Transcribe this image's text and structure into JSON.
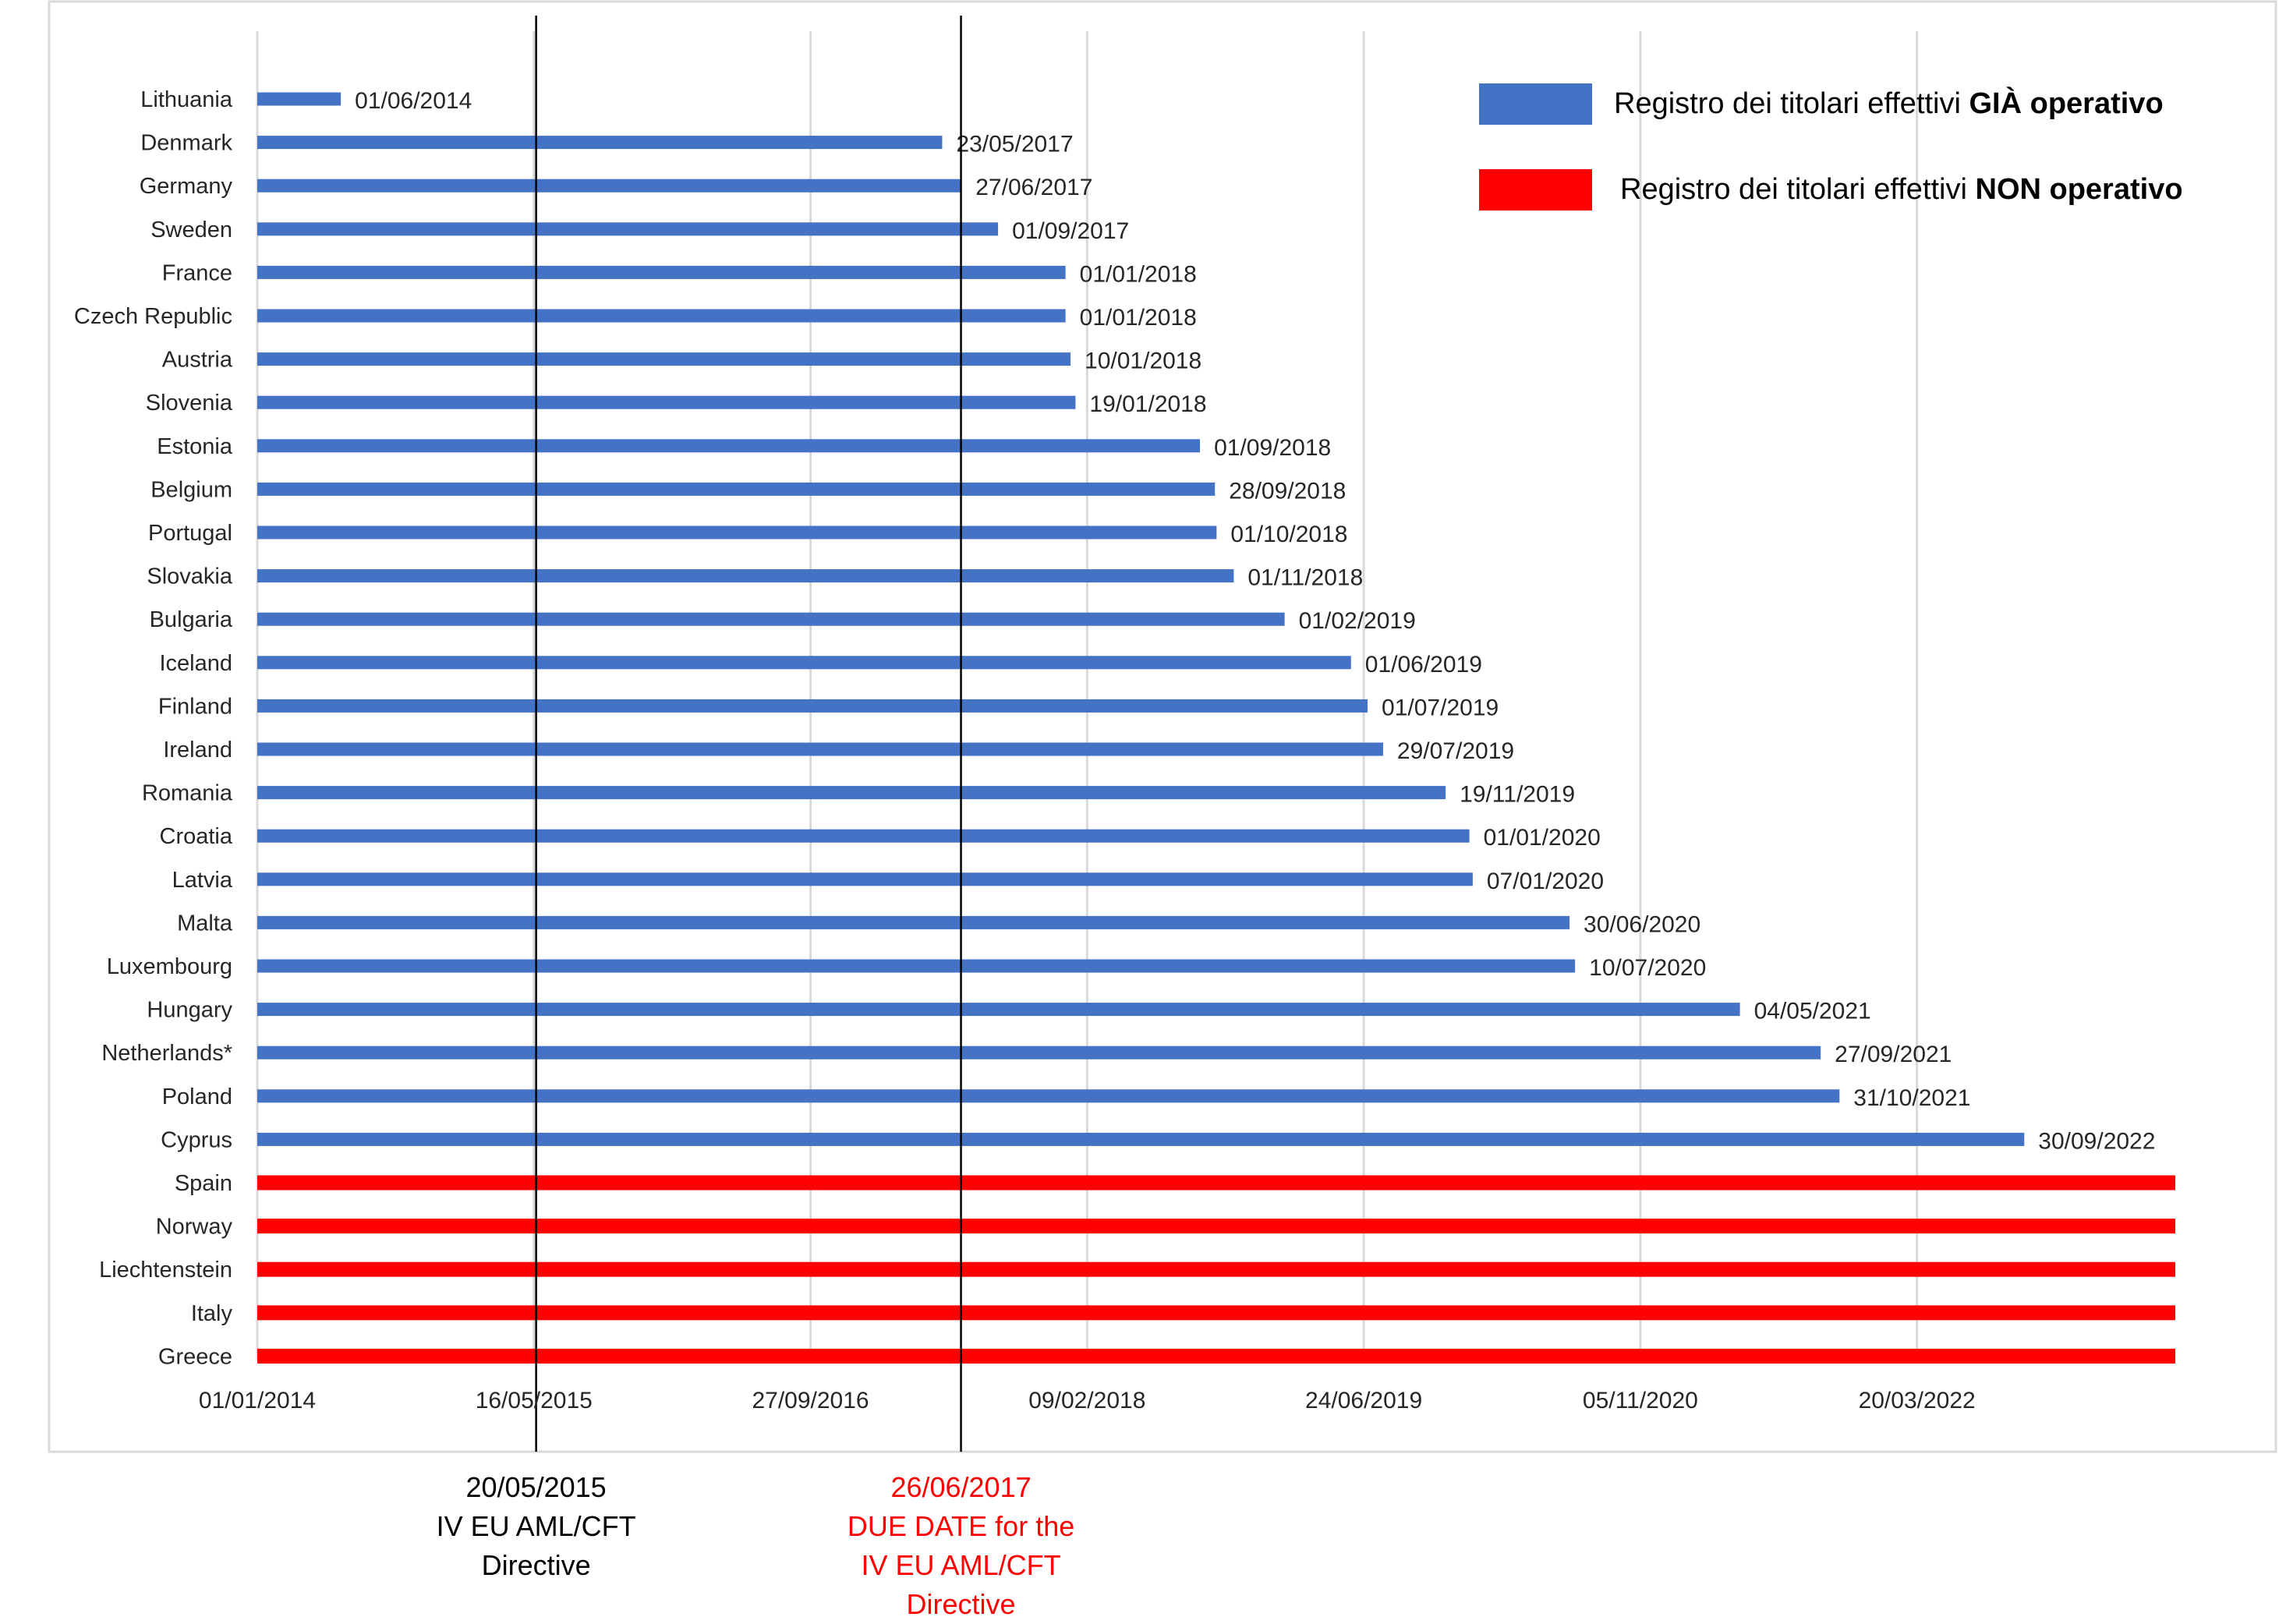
{
  "chart_data": {
    "type": "bar",
    "orientation": "horizontal",
    "colors": {
      "operational": "#4472C4",
      "not_operational": "#FF0000",
      "annotation_red": "#FF0000",
      "annotation_black": "#000000"
    },
    "x_axis": {
      "type": "date",
      "range": [
        "2014-01-01",
        "2023-06-30"
      ],
      "ticks": [
        {
          "date": "2014-01-01",
          "label": "01/01/2014"
        },
        {
          "date": "2015-05-16",
          "label": "16/05/2015"
        },
        {
          "date": "2016-09-27",
          "label": "27/09/2016"
        },
        {
          "date": "2018-02-09",
          "label": "09/02/2018"
        },
        {
          "date": "2019-06-24",
          "label": "24/06/2019"
        },
        {
          "date": "2020-11-05",
          "label": "05/11/2020"
        },
        {
          "date": "2022-03-20",
          "label": "20/03/2022"
        }
      ],
      "grid": true
    },
    "categories": [
      "Lithuania",
      "Denmark",
      "Germany",
      "Sweden",
      "France",
      "Czech Republic",
      "Austria",
      "Slovenia",
      "Estonia",
      "Belgium",
      "Portugal",
      "Slovakia",
      "Bulgaria",
      "Iceland",
      "Finland",
      "Ireland",
      "Romania",
      "Croatia",
      "Latvia",
      "Malta",
      "Luxembourg",
      "Hungary",
      "Netherlands*",
      "Poland",
      "Cyprus",
      "Spain",
      "Norway",
      "Liechtenstein",
      "Italy",
      "Greece"
    ],
    "series": [
      {
        "name": "Registro dei titolari effettivi GIÀ operativo",
        "status": "operational",
        "items": [
          {
            "country": "Lithuania",
            "end": "2014-06-01",
            "label": "01/06/2014"
          },
          {
            "country": "Denmark",
            "end": "2017-05-23",
            "label": "23/05/2017"
          },
          {
            "country": "Germany",
            "end": "2017-06-27",
            "label": "27/06/2017"
          },
          {
            "country": "Sweden",
            "end": "2017-09-01",
            "label": "01/09/2017"
          },
          {
            "country": "France",
            "end": "2018-01-01",
            "label": "01/01/2018"
          },
          {
            "country": "Czech Republic",
            "end": "2018-01-01",
            "label": "01/01/2018"
          },
          {
            "country": "Austria",
            "end": "2018-01-10",
            "label": "10/01/2018"
          },
          {
            "country": "Slovenia",
            "end": "2018-01-19",
            "label": "19/01/2018"
          },
          {
            "country": "Estonia",
            "end": "2018-09-01",
            "label": "01/09/2018"
          },
          {
            "country": "Belgium",
            "end": "2018-09-28",
            "label": "28/09/2018"
          },
          {
            "country": "Portugal",
            "end": "2018-10-01",
            "label": "01/10/2018"
          },
          {
            "country": "Slovakia",
            "end": "2018-11-01",
            "label": "01/11/2018"
          },
          {
            "country": "Bulgaria",
            "end": "2019-02-01",
            "label": "01/02/2019"
          },
          {
            "country": "Iceland",
            "end": "2019-06-01",
            "label": "01/06/2019"
          },
          {
            "country": "Finland",
            "end": "2019-07-01",
            "label": "01/07/2019"
          },
          {
            "country": "Ireland",
            "end": "2019-07-29",
            "label": "29/07/2019"
          },
          {
            "country": "Romania",
            "end": "2019-11-19",
            "label": "19/11/2019"
          },
          {
            "country": "Croatia",
            "end": "2020-01-01",
            "label": "01/01/2020"
          },
          {
            "country": "Latvia",
            "end": "2020-01-07",
            "label": "07/01/2020"
          },
          {
            "country": "Malta",
            "end": "2020-06-30",
            "label": "30/06/2020"
          },
          {
            "country": "Luxembourg",
            "end": "2020-07-10",
            "label": "10/07/2020"
          },
          {
            "country": "Hungary",
            "end": "2021-05-04",
            "label": "04/05/2021"
          },
          {
            "country": "Netherlands*",
            "end": "2021-09-27",
            "label": "27/09/2021"
          },
          {
            "country": "Poland",
            "end": "2021-10-31",
            "label": "31/10/2021"
          },
          {
            "country": "Cyprus",
            "end": "2022-09-30",
            "label": "30/09/2022"
          }
        ]
      },
      {
        "name": "Registro dei titolari effettivi NON operativo",
        "status": "not_operational",
        "items": [
          {
            "country": "Spain",
            "end": "2023-06-30",
            "label": ""
          },
          {
            "country": "Norway",
            "end": "2023-06-30",
            "label": ""
          },
          {
            "country": "Liechtenstein",
            "end": "2023-06-30",
            "label": ""
          },
          {
            "country": "Italy",
            "end": "2023-06-30",
            "label": ""
          },
          {
            "country": "Greece",
            "end": "2023-06-30",
            "label": ""
          }
        ]
      }
    ],
    "legend": {
      "placement": "top-right",
      "entries": [
        {
          "prefix": "Registro dei titolari effettivi ",
          "strong": "GIÀ operativo",
          "status": "operational"
        },
        {
          "prefix": "Registro dei titolari effettivi ",
          "strong": "NON operativo",
          "status": "not_operational"
        }
      ]
    },
    "reference_lines": [
      {
        "date": "2015-05-20",
        "color": "black",
        "lines": [
          "20/05/2015",
          "IV EU AML/CFT",
          "Directive"
        ]
      },
      {
        "date": "2017-06-26",
        "color": "red",
        "lines": [
          "26/06/2017",
          "DUE DATE for the",
          "IV EU AML/CFT",
          "Directive"
        ]
      }
    ]
  }
}
